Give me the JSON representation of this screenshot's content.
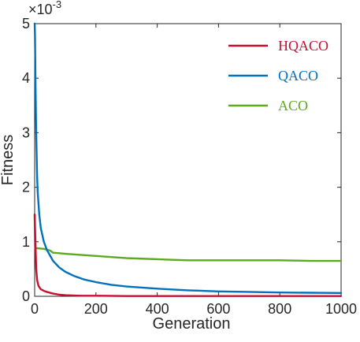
{
  "chart_data": {
    "type": "line",
    "xlabel": "Generation",
    "ylabel": "Fitness",
    "y_exponent": "×10",
    "y_exponent_power": "-3",
    "xlim": [
      0,
      1000
    ],
    "ylim": [
      0,
      5
    ],
    "x_ticks": [
      0,
      200,
      400,
      600,
      800,
      1000
    ],
    "y_ticks": [
      0,
      1,
      2,
      3,
      4,
      5
    ],
    "legend_position": "top-right",
    "series": [
      {
        "name": "HQACO",
        "color": "#C8102E",
        "x": [
          0,
          2,
          5,
          8,
          12,
          16,
          20,
          30,
          40,
          60,
          80,
          100,
          150,
          200,
          300,
          400,
          600,
          800,
          1000
        ],
        "y": [
          1.5,
          1.1,
          0.5,
          0.3,
          0.2,
          0.16,
          0.13,
          0.1,
          0.08,
          0.05,
          0.03,
          0.02,
          0.01,
          0.01,
          0.005,
          0.005,
          0.005,
          0.005,
          0.005
        ]
      },
      {
        "name": "QACO",
        "color": "#0072BD",
        "x": [
          0,
          1,
          3,
          5,
          8,
          10,
          15,
          20,
          30,
          40,
          50,
          60,
          80,
          100,
          130,
          160,
          200,
          250,
          300,
          400,
          500,
          600,
          700,
          800,
          900,
          1000
        ],
        "y": [
          5.0,
          4.8,
          3.8,
          3.0,
          2.2,
          1.9,
          1.5,
          1.25,
          1.0,
          0.85,
          0.75,
          0.65,
          0.53,
          0.45,
          0.37,
          0.31,
          0.26,
          0.21,
          0.18,
          0.14,
          0.11,
          0.09,
          0.08,
          0.07,
          0.065,
          0.06
        ]
      },
      {
        "name": "ACO",
        "color": "#5DAA1F",
        "x": [
          0,
          1,
          10,
          30,
          50,
          60,
          80,
          100,
          150,
          200,
          250,
          300,
          350,
          400,
          450,
          500,
          600,
          700,
          800,
          900,
          1000
        ],
        "y": [
          1.5,
          0.88,
          0.88,
          0.87,
          0.84,
          0.8,
          0.79,
          0.78,
          0.76,
          0.74,
          0.72,
          0.7,
          0.69,
          0.68,
          0.67,
          0.66,
          0.66,
          0.66,
          0.66,
          0.65,
          0.65
        ]
      }
    ]
  }
}
